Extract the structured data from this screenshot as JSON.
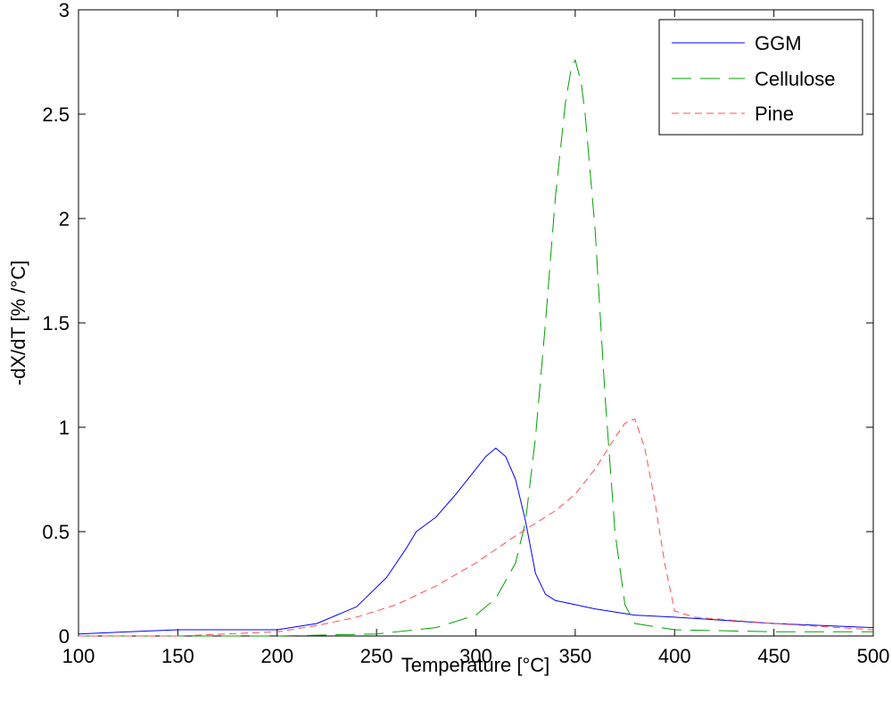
{
  "chart_data": {
    "type": "line",
    "title": "",
    "xlabel": "Temperature [°C]",
    "ylabel": "-dX/dT [% /°C]",
    "xlim": [
      100,
      500
    ],
    "ylim": [
      0,
      3
    ],
    "xticks": [
      "100",
      "150",
      "200",
      "250",
      "300",
      "350",
      "400",
      "450",
      "500"
    ],
    "yticks": [
      "0",
      "0.5",
      "1",
      "1.5",
      "2",
      "2.5",
      "3"
    ],
    "grid": false,
    "legend_position": "top-right",
    "series": [
      {
        "name": "GGM",
        "color": "#0000ff",
        "dash": "solid",
        "x": [
          100,
          150,
          200,
          220,
          240,
          255,
          265,
          270,
          280,
          290,
          300,
          305,
          310,
          315,
          320,
          325,
          330,
          335,
          340,
          350,
          360,
          380,
          400,
          450,
          500
        ],
        "y": [
          0.01,
          0.03,
          0.03,
          0.06,
          0.14,
          0.28,
          0.42,
          0.5,
          0.57,
          0.68,
          0.8,
          0.86,
          0.9,
          0.86,
          0.75,
          0.55,
          0.3,
          0.2,
          0.17,
          0.15,
          0.13,
          0.1,
          0.09,
          0.06,
          0.04
        ]
      },
      {
        "name": "Cellulose",
        "color": "#00a000",
        "dash": "long-dash",
        "x": [
          100,
          200,
          250,
          280,
          300,
          310,
          320,
          325,
          330,
          335,
          340,
          345,
          348,
          350,
          353,
          355,
          360,
          365,
          370,
          375,
          380,
          400,
          450,
          500
        ],
        "y": [
          0.0,
          0.0,
          0.01,
          0.04,
          0.1,
          0.18,
          0.35,
          0.55,
          0.95,
          1.5,
          2.1,
          2.55,
          2.72,
          2.76,
          2.65,
          2.5,
          1.95,
          1.15,
          0.5,
          0.15,
          0.06,
          0.03,
          0.02,
          0.02
        ]
      },
      {
        "name": "Pine",
        "color": "#ff5050",
        "dash": "dash",
        "x": [
          100,
          150,
          200,
          220,
          240,
          260,
          280,
          300,
          320,
          340,
          350,
          360,
          370,
          375,
          380,
          385,
          390,
          395,
          400,
          410,
          450,
          500
        ],
        "y": [
          0.0,
          0.0,
          0.02,
          0.05,
          0.09,
          0.15,
          0.24,
          0.35,
          0.48,
          0.6,
          0.68,
          0.8,
          0.95,
          1.02,
          1.04,
          0.9,
          0.65,
          0.35,
          0.12,
          0.09,
          0.06,
          0.03
        ]
      }
    ]
  }
}
